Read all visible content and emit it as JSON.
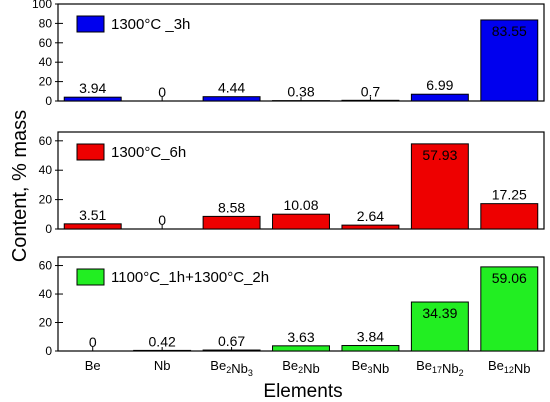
{
  "chart_data": {
    "type": "bar",
    "categories": [
      "Be",
      "Nb",
      "Be2Nb3",
      "Be2Nb",
      "Be3Nb",
      "Be17Nb2",
      "Be12Nb"
    ],
    "category_labels": [
      {
        "base": "Be",
        "parts": [
          [
            "Be",
            ""
          ]
        ]
      },
      {
        "base": "Nb",
        "parts": [
          [
            "Nb",
            ""
          ]
        ]
      },
      {
        "base": "Be2Nb3",
        "parts": [
          [
            "Be",
            "2"
          ],
          [
            "Nb",
            "3"
          ]
        ]
      },
      {
        "base": "Be2Nb",
        "parts": [
          [
            "Be",
            "2"
          ],
          [
            "Nb",
            ""
          ]
        ]
      },
      {
        "base": "Be3Nb",
        "parts": [
          [
            "Be",
            "3"
          ],
          [
            "Nb",
            ""
          ]
        ]
      },
      {
        "base": "Be17Nb2",
        "parts": [
          [
            "Be",
            "17"
          ],
          [
            "Nb",
            "2"
          ]
        ]
      },
      {
        "base": "Be12Nb",
        "parts": [
          [
            "Be",
            "12"
          ],
          [
            "Nb",
            ""
          ]
        ]
      }
    ],
    "xlabel": "Elements",
    "ylabel": "Content, % mass",
    "panels": [
      {
        "name": "1300°C _3h",
        "color": "#0000ee",
        "ylim": [
          0,
          100
        ],
        "yticks": [
          0,
          20,
          40,
          60,
          80,
          100
        ],
        "values": [
          3.94,
          0,
          4.44,
          0.38,
          0.7,
          6.99,
          83.55
        ],
        "labels": [
          "3.94",
          "0",
          "4.44",
          "0.38",
          "0.7",
          "6.99",
          "83.55"
        ]
      },
      {
        "name": "1300°C_6h",
        "color": "#ee0000",
        "ylim": [
          0,
          66
        ],
        "yticks": [
          0,
          20,
          40,
          60
        ],
        "values": [
          3.51,
          0,
          8.58,
          10.08,
          2.64,
          57.93,
          17.25
        ],
        "labels": [
          "3.51",
          "0",
          "8.58",
          "10.08",
          "2.64",
          "57.93",
          "17.25"
        ]
      },
      {
        "name": "1100°C_1h+1300°C_2h",
        "color": "#22ee22",
        "ylim": [
          0,
          66
        ],
        "yticks": [
          0,
          20,
          40,
          60
        ],
        "values": [
          0,
          0.42,
          0.67,
          3.63,
          3.84,
          34.39,
          59.06
        ],
        "labels": [
          "0",
          "0.42",
          "0.67",
          "3.63",
          "3.84",
          "34.39",
          "59.06"
        ]
      }
    ]
  }
}
